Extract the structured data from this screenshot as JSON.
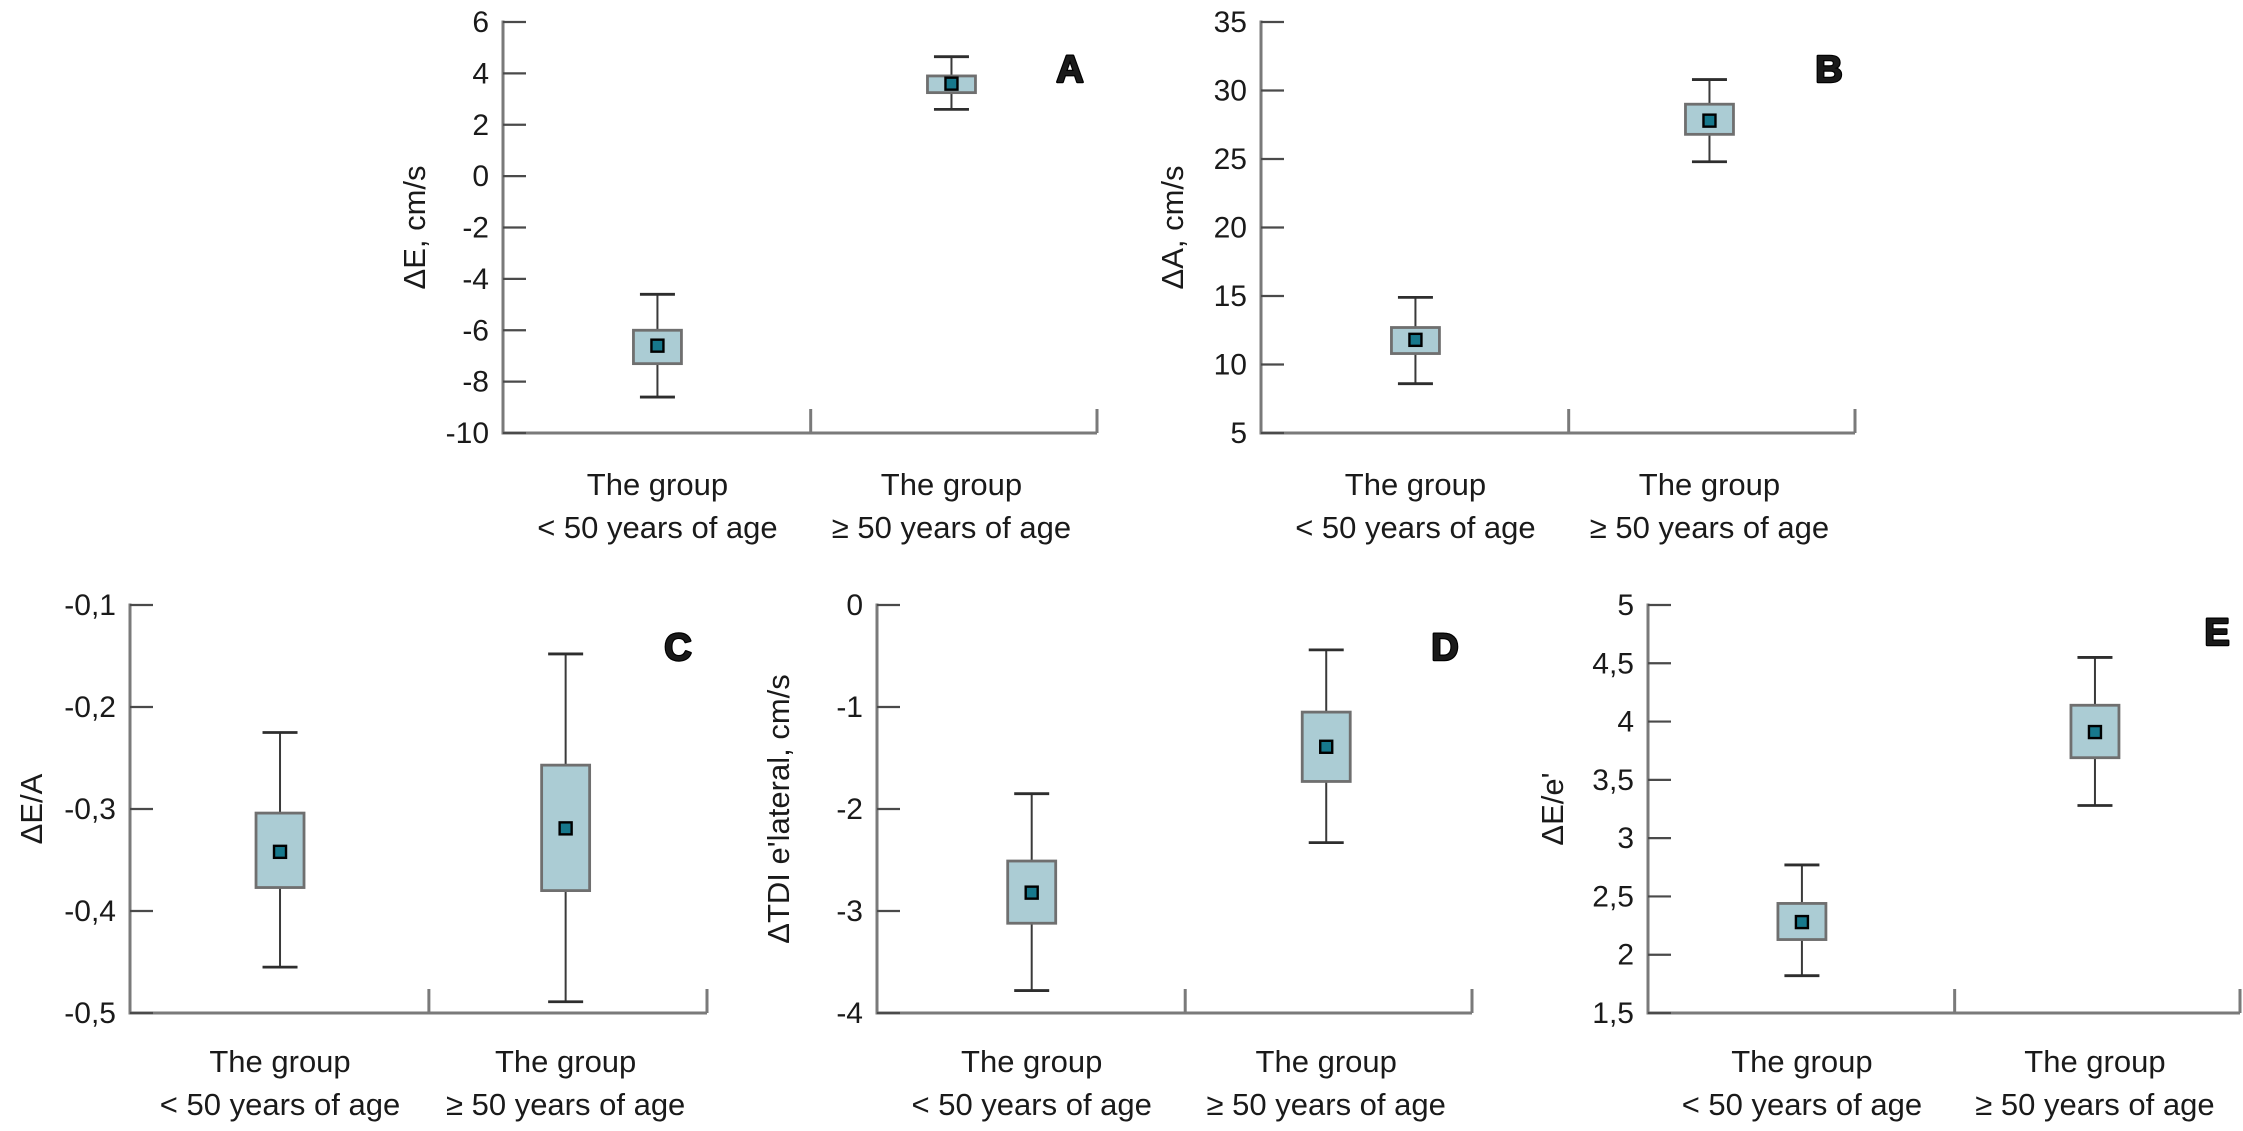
{
  "figure": {
    "description": "Five-panel box-and-whisker figure comparing two age groups",
    "background_color": "#ffffff",
    "panel_labels": [
      "A",
      "B",
      "C",
      "D",
      "E"
    ]
  },
  "colors": {
    "box_fill": "#abccd4",
    "box_stroke": "#6f6f6f",
    "median_fill": "#17788c",
    "median_stroke": "#000000",
    "whisker_line": "#3a3a3a",
    "whisker_cap": "#2e2e2e",
    "axis": "#7a7a7a",
    "tick": "#4a4a4a",
    "text": "#1a1a1a",
    "panel_letter_fill": "#ffffff",
    "panel_letter_stroke": "#000000"
  },
  "chart_data": [
    {
      "type": "box",
      "panel_label": "A",
      "title": "",
      "xlabel": "",
      "ylabel": "ΔE, cm/s",
      "ylim": [
        -10,
        6
      ],
      "grid": false,
      "legend": "none",
      "yticks": [
        {
          "label": "6",
          "value": 6
        },
        {
          "label": "4",
          "value": 4
        },
        {
          "label": "2",
          "value": 2
        },
        {
          "label": "0",
          "value": 0
        },
        {
          "label": "-2",
          "value": -2
        },
        {
          "label": "-4",
          "value": -4
        },
        {
          "label": "-6",
          "value": -6
        },
        {
          "label": "-8",
          "value": -8
        },
        {
          "label": "-10",
          "value": -10
        }
      ],
      "categories": [
        {
          "line1": "The group",
          "line2": "< 50 years of age"
        },
        {
          "line1": "The group",
          "line2": "≥ 50 years of age"
        }
      ],
      "series": [
        {
          "name": "The group < 50 years of age",
          "whisker_low": -8.6,
          "q1": -7.3,
          "median": -6.6,
          "q3": -6.0,
          "whisker_high": -4.6
        },
        {
          "name": "The group ≥ 50 years of age",
          "whisker_low": 2.6,
          "q1": 3.25,
          "median": 3.6,
          "q3": 3.9,
          "whisker_high": 4.65
        }
      ]
    },
    {
      "type": "box",
      "panel_label": "B",
      "title": "",
      "xlabel": "",
      "ylabel": "ΔA, cm/s",
      "ylim": [
        5,
        35
      ],
      "grid": false,
      "legend": "none",
      "yticks": [
        {
          "label": "35",
          "value": 35
        },
        {
          "label": "30",
          "value": 30
        },
        {
          "label": "25",
          "value": 25
        },
        {
          "label": "20",
          "value": 20
        },
        {
          "label": "15",
          "value": 15
        },
        {
          "label": "10",
          "value": 10
        },
        {
          "label": "5",
          "value": 5
        }
      ],
      "categories": [
        {
          "line1": "The group",
          "line2": "< 50 years of age"
        },
        {
          "line1": "The group",
          "line2": "≥ 50 years of age"
        }
      ],
      "series": [
        {
          "name": "The group < 50 years of age",
          "whisker_low": 8.6,
          "q1": 10.8,
          "median": 11.8,
          "q3": 12.7,
          "whisker_high": 14.9
        },
        {
          "name": "The group ≥ 50 years of age",
          "whisker_low": 24.8,
          "q1": 26.8,
          "median": 27.8,
          "q3": 29.0,
          "whisker_high": 30.8
        }
      ]
    },
    {
      "type": "box",
      "panel_label": "C",
      "title": "",
      "xlabel": "",
      "ylabel": "ΔE/A",
      "ylim": [
        -0.5,
        -0.1
      ],
      "grid": false,
      "legend": "none",
      "yticks": [
        {
          "label": "-0,1",
          "value": -0.1
        },
        {
          "label": "-0,2",
          "value": -0.2
        },
        {
          "label": "-0,3",
          "value": -0.3
        },
        {
          "label": "-0,4",
          "value": -0.4
        },
        {
          "label": "-0,5",
          "value": -0.5
        }
      ],
      "categories": [
        {
          "line1": "The group",
          "line2": "< 50 years of age"
        },
        {
          "line1": "The group",
          "line2": "≥ 50 years of age"
        }
      ],
      "series": [
        {
          "name": "The group < 50 years of age",
          "whisker_low": -0.455,
          "q1": -0.377,
          "median": -0.342,
          "q3": -0.304,
          "whisker_high": -0.225
        },
        {
          "name": "The group ≥ 50 years of age",
          "whisker_low": -0.489,
          "q1": -0.38,
          "median": -0.319,
          "q3": -0.257,
          "whisker_high": -0.148
        }
      ]
    },
    {
      "type": "box",
      "panel_label": "D",
      "title": "",
      "xlabel": "",
      "ylabel": "ΔTDI e'lateral, cm/s",
      "ylim": [
        -4,
        0
      ],
      "grid": false,
      "legend": "none",
      "yticks": [
        {
          "label": "0",
          "value": 0
        },
        {
          "label": "-1",
          "value": -1
        },
        {
          "label": "-2",
          "value": -2
        },
        {
          "label": "-3",
          "value": -3
        },
        {
          "label": "-4",
          "value": -4
        }
      ],
      "categories": [
        {
          "line1": "The group",
          "line2": "< 50 years of age"
        },
        {
          "line1": "The group",
          "line2": "≥ 50 years of age"
        }
      ],
      "series": [
        {
          "name": "The group < 50 years of age",
          "whisker_low": -3.78,
          "q1": -3.12,
          "median": -2.82,
          "q3": -2.51,
          "whisker_high": -1.85
        },
        {
          "name": "The group ≥ 50 years of age",
          "whisker_low": -2.33,
          "q1": -1.73,
          "median": -1.39,
          "q3": -1.05,
          "whisker_high": -0.44
        }
      ]
    },
    {
      "type": "box",
      "panel_label": "E",
      "title": "",
      "xlabel": "",
      "ylabel": "ΔE/e'",
      "ylim": [
        1.5,
        5
      ],
      "grid": false,
      "legend": "none",
      "yticks": [
        {
          "label": "5",
          "value": 5
        },
        {
          "label": "4,5",
          "value": 4.5
        },
        {
          "label": "4",
          "value": 4
        },
        {
          "label": "3,5",
          "value": 3.5
        },
        {
          "label": "3",
          "value": 3
        },
        {
          "label": "2,5",
          "value": 2.5
        },
        {
          "label": "2",
          "value": 2
        },
        {
          "label": "1,5",
          "value": 1.5
        }
      ],
      "categories": [
        {
          "line1": "The group",
          "line2": "< 50 years of age"
        },
        {
          "line1": "The group",
          "line2": "≥ 50 years of age"
        }
      ],
      "series": [
        {
          "name": "The group < 50 years of age",
          "whisker_low": 1.82,
          "q1": 2.13,
          "median": 2.28,
          "q3": 2.44,
          "whisker_high": 2.77
        },
        {
          "name": "The group ≥ 50 years of age",
          "whisker_low": 3.28,
          "q1": 3.69,
          "median": 3.91,
          "q3": 4.14,
          "whisker_high": 4.55
        }
      ]
    }
  ]
}
